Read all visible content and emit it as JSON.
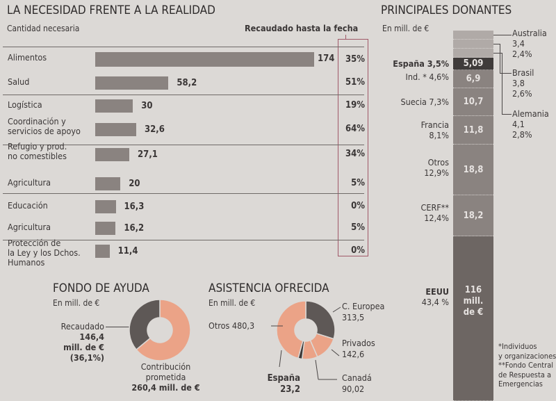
{
  "colors": {
    "background": "#dcd9d6",
    "bar": "#8a8380",
    "dark_segment": "#5e5856",
    "espana_segment": "#3f3b3a",
    "salmon": "#eba387",
    "highlight_box": "#a05868"
  },
  "chart_data": [
    {
      "type": "bar",
      "title": "LA NECESIDAD FRENTE A LA REALIDAD",
      "subtitle": "Cantidad necesaria",
      "secondary_header": "Recaudado hasta la fecha",
      "orientation": "horizontal",
      "categories": [
        "Alimentos",
        "Salud",
        "Logística",
        "Coordinación y servicios de apoyo",
        "Refugio y prod. no comestibles",
        "Agricultura",
        "Educación",
        "Agricultura",
        "Protección de la Ley y los Dchos. Humanos"
      ],
      "category_lines": [
        [
          "Alimentos"
        ],
        [
          "Salud"
        ],
        [
          "Logística"
        ],
        [
          "Coordinación y",
          "servicios de apoyo"
        ],
        [
          "Refugio y prod.",
          "no comestibles"
        ],
        [
          "Agricultura"
        ],
        [
          "Educación"
        ],
        [
          "Agricultura"
        ],
        [
          "Protección de",
          "la Ley y los Dchos.",
          "Humanos"
        ]
      ],
      "values": [
        174,
        58.2,
        30,
        32.6,
        27.1,
        20,
        16.3,
        16.2,
        11.4
      ],
      "value_labels": [
        "174",
        "58,2",
        "30",
        "32,6",
        "27,1",
        "20",
        "16,3",
        "16,2",
        "11,4"
      ],
      "raised_pct": [
        "35%",
        "51%",
        "19%",
        "64%",
        "34%",
        "5%",
        "0%",
        "5%",
        "0%"
      ],
      "xlim": [
        0,
        174
      ]
    },
    {
      "type": "bar",
      "stacked": true,
      "title": "PRINCIPALES DONANTES",
      "subtitle": "En mill. de €",
      "segments": [
        {
          "name": "Australia",
          "value": 3.4,
          "value_label": "3,4",
          "pct": "2,4%",
          "side": "right"
        },
        {
          "name": "Brasil",
          "value": 3.8,
          "value_label": "3,8",
          "pct": "2,6%",
          "side": "right"
        },
        {
          "name": "Alemania",
          "value": 4.1,
          "value_label": "4,1",
          "pct": "2,8%",
          "side": "right"
        },
        {
          "name": "España",
          "value": 5.09,
          "value_label": "5,09",
          "pct": "3,5%",
          "side": "left",
          "label": "España 3,5%"
        },
        {
          "name": "Ind. *",
          "value": 6.9,
          "value_label": "6,9",
          "pct": "4,6%",
          "side": "left",
          "label": "Ind. * 4,6%"
        },
        {
          "name": "Suecia",
          "value": 10.7,
          "value_label": "10,7",
          "pct": "7,3%",
          "side": "left",
          "label": "Suecia 7,3%"
        },
        {
          "name": "Francia",
          "value": 11.8,
          "value_label": "11,8",
          "pct": "8,1%",
          "side": "left"
        },
        {
          "name": "Otros",
          "value": 18.8,
          "value_label": "18,8",
          "pct": "12,9%",
          "side": "left"
        },
        {
          "name": "CERF**",
          "value": 18.2,
          "value_label": "18,2",
          "pct": "12,4%",
          "side": "left"
        },
        {
          "name": "EEUU",
          "value": 116,
          "value_label_lines": [
            "116",
            "mill.",
            "de €"
          ],
          "pct": "43,4 %",
          "side": "left"
        }
      ],
      "footnotes": [
        "*Individuos",
        "y organizaciones",
        "**Fondo Central",
        "de Respuesta a",
        "Emergencias"
      ]
    },
    {
      "type": "pie",
      "donut": true,
      "title": "FONDO DE AYUDA",
      "subtitle": "En mill. de €",
      "slices": [
        {
          "name": "Recaudado",
          "value": 146.4,
          "pct": 36.1
        },
        {
          "name": "Contribución prometida (resto)",
          "value": 260.4,
          "pct": 63.9
        }
      ],
      "labels": {
        "recaudado": [
          "Recaudado",
          "146,4",
          "mill. de €",
          "(36,1%)"
        ],
        "prometida": [
          "Contribución",
          "prometida",
          "260,4 mill. de €"
        ]
      }
    },
    {
      "type": "pie",
      "donut": true,
      "title": "ASISTENCIA OFRECIDA",
      "subtitle": "En mill. de €",
      "slices": [
        {
          "name": "C. Europea",
          "value": 313.5,
          "value_label": "313,5"
        },
        {
          "name": "Privados",
          "value": 142.6,
          "value_label": "142,6"
        },
        {
          "name": "Canadá",
          "value": 90.02,
          "value_label": "90,02"
        },
        {
          "name": "España",
          "value": 23.2,
          "value_label": "23,2"
        },
        {
          "name": "Otros",
          "value": 480.3,
          "value_label": "480,3"
        }
      ]
    }
  ]
}
